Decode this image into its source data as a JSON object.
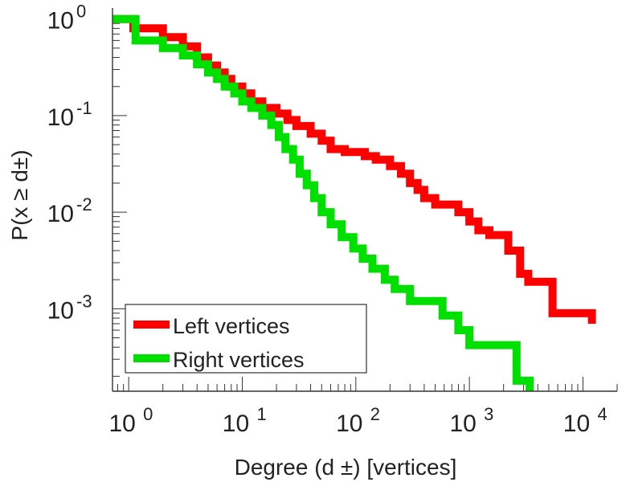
{
  "chart_data": {
    "type": "line",
    "xscale": "log",
    "yscale": "log",
    "xlim": [
      0.72,
      20000
    ],
    "ylim": [
      0.00014,
      1.3
    ],
    "xlabel": "Degree (d ±) [vertices]",
    "ylabel": "P(x ≥ d±)",
    "xticks": [
      {
        "value": 1,
        "base": "10",
        "exp": "0"
      },
      {
        "value": 10,
        "base": "10",
        "exp": "1"
      },
      {
        "value": 100,
        "base": "10",
        "exp": "2"
      },
      {
        "value": 1000,
        "base": "10",
        "exp": "3"
      },
      {
        "value": 10000,
        "base": "10",
        "exp": "4"
      }
    ],
    "yticks": [
      {
        "value": 1,
        "base": "10",
        "exp": "0"
      },
      {
        "value": 0.1,
        "base": "10",
        "exp": "-1"
      },
      {
        "value": 0.01,
        "base": "10",
        "exp": "-2"
      },
      {
        "value": 0.001,
        "base": "10",
        "exp": "-3"
      }
    ],
    "grid": false,
    "legend_position": "bottom-left",
    "series": [
      {
        "name": "Left vertices",
        "color": "#ff0000",
        "points": [
          [
            0.72,
            1.0
          ],
          [
            1.1,
            1.0
          ],
          [
            1.1,
            0.8
          ],
          [
            2.0,
            0.8
          ],
          [
            2.0,
            0.65
          ],
          [
            3.0,
            0.65
          ],
          [
            3.0,
            0.52
          ],
          [
            4.0,
            0.52
          ],
          [
            4.0,
            0.4
          ],
          [
            5.0,
            0.4
          ],
          [
            5.0,
            0.33
          ],
          [
            6.0,
            0.33
          ],
          [
            6.0,
            0.28
          ],
          [
            7.0,
            0.28
          ],
          [
            7.0,
            0.24
          ],
          [
            8.0,
            0.24
          ],
          [
            8.0,
            0.2
          ],
          [
            10,
            0.2
          ],
          [
            10,
            0.17
          ],
          [
            12,
            0.17
          ],
          [
            12,
            0.14
          ],
          [
            15,
            0.14
          ],
          [
            15,
            0.12
          ],
          [
            20,
            0.12
          ],
          [
            20,
            0.105
          ],
          [
            25,
            0.105
          ],
          [
            25,
            0.09
          ],
          [
            30,
            0.09
          ],
          [
            30,
            0.078
          ],
          [
            40,
            0.078
          ],
          [
            40,
            0.065
          ],
          [
            50,
            0.065
          ],
          [
            50,
            0.055
          ],
          [
            60,
            0.055
          ],
          [
            60,
            0.045
          ],
          [
            80,
            0.045
          ],
          [
            80,
            0.042
          ],
          [
            120,
            0.042
          ],
          [
            120,
            0.038
          ],
          [
            150,
            0.038
          ],
          [
            150,
            0.035
          ],
          [
            200,
            0.035
          ],
          [
            200,
            0.03
          ],
          [
            250,
            0.03
          ],
          [
            250,
            0.025
          ],
          [
            300,
            0.025
          ],
          [
            300,
            0.02
          ],
          [
            350,
            0.02
          ],
          [
            350,
            0.017
          ],
          [
            400,
            0.017
          ],
          [
            400,
            0.014
          ],
          [
            500,
            0.014
          ],
          [
            500,
            0.012
          ],
          [
            800,
            0.012
          ],
          [
            800,
            0.01
          ],
          [
            1000,
            0.01
          ],
          [
            1000,
            0.008
          ],
          [
            1200,
            0.008
          ],
          [
            1200,
            0.0065
          ],
          [
            1500,
            0.0065
          ],
          [
            1500,
            0.0058
          ],
          [
            2200,
            0.0058
          ],
          [
            2200,
            0.004
          ],
          [
            2800,
            0.004
          ],
          [
            2800,
            0.0023
          ],
          [
            3300,
            0.0023
          ],
          [
            3300,
            0.0019
          ],
          [
            5400,
            0.0019
          ],
          [
            5400,
            0.0009
          ],
          [
            12000,
            0.0009
          ],
          [
            12000,
            0.0007
          ]
        ]
      },
      {
        "name": "Right vertices",
        "color": "#00e000",
        "points": [
          [
            0.72,
            1.0
          ],
          [
            1.15,
            1.0
          ],
          [
            1.15,
            0.6
          ],
          [
            2.0,
            0.6
          ],
          [
            2.0,
            0.5
          ],
          [
            3.0,
            0.5
          ],
          [
            3.0,
            0.42
          ],
          [
            4.0,
            0.42
          ],
          [
            4.0,
            0.34
          ],
          [
            5.0,
            0.34
          ],
          [
            5.0,
            0.28
          ],
          [
            6.0,
            0.28
          ],
          [
            6.0,
            0.24
          ],
          [
            7.0,
            0.24
          ],
          [
            7.0,
            0.2
          ],
          [
            8.5,
            0.2
          ],
          [
            8.5,
            0.17
          ],
          [
            10,
            0.17
          ],
          [
            10,
            0.14
          ],
          [
            12,
            0.14
          ],
          [
            12,
            0.12
          ],
          [
            15,
            0.12
          ],
          [
            15,
            0.1
          ],
          [
            18,
            0.1
          ],
          [
            18,
            0.08
          ],
          [
            21,
            0.08
          ],
          [
            21,
            0.06
          ],
          [
            24,
            0.06
          ],
          [
            24,
            0.045
          ],
          [
            28,
            0.045
          ],
          [
            28,
            0.035
          ],
          [
            32,
            0.035
          ],
          [
            32,
            0.025
          ],
          [
            37,
            0.025
          ],
          [
            37,
            0.019
          ],
          [
            43,
            0.019
          ],
          [
            43,
            0.014
          ],
          [
            50,
            0.014
          ],
          [
            50,
            0.01
          ],
          [
            60,
            0.01
          ],
          [
            60,
            0.0075
          ],
          [
            75,
            0.0075
          ],
          [
            75,
            0.0055
          ],
          [
            95,
            0.0055
          ],
          [
            95,
            0.0042
          ],
          [
            115,
            0.0042
          ],
          [
            115,
            0.0033
          ],
          [
            140,
            0.0033
          ],
          [
            140,
            0.0026
          ],
          [
            180,
            0.0026
          ],
          [
            180,
            0.002
          ],
          [
            220,
            0.002
          ],
          [
            220,
            0.0016
          ],
          [
            300,
            0.0016
          ],
          [
            300,
            0.0012
          ],
          [
            580,
            0.0012
          ],
          [
            580,
            0.00085
          ],
          [
            800,
            0.00085
          ],
          [
            800,
            0.0006
          ],
          [
            1000,
            0.0006
          ],
          [
            1000,
            0.00042
          ],
          [
            2600,
            0.00042
          ],
          [
            2600,
            0.00018
          ],
          [
            3400,
            0.00018
          ],
          [
            3400,
            0.00014
          ]
        ]
      }
    ]
  }
}
